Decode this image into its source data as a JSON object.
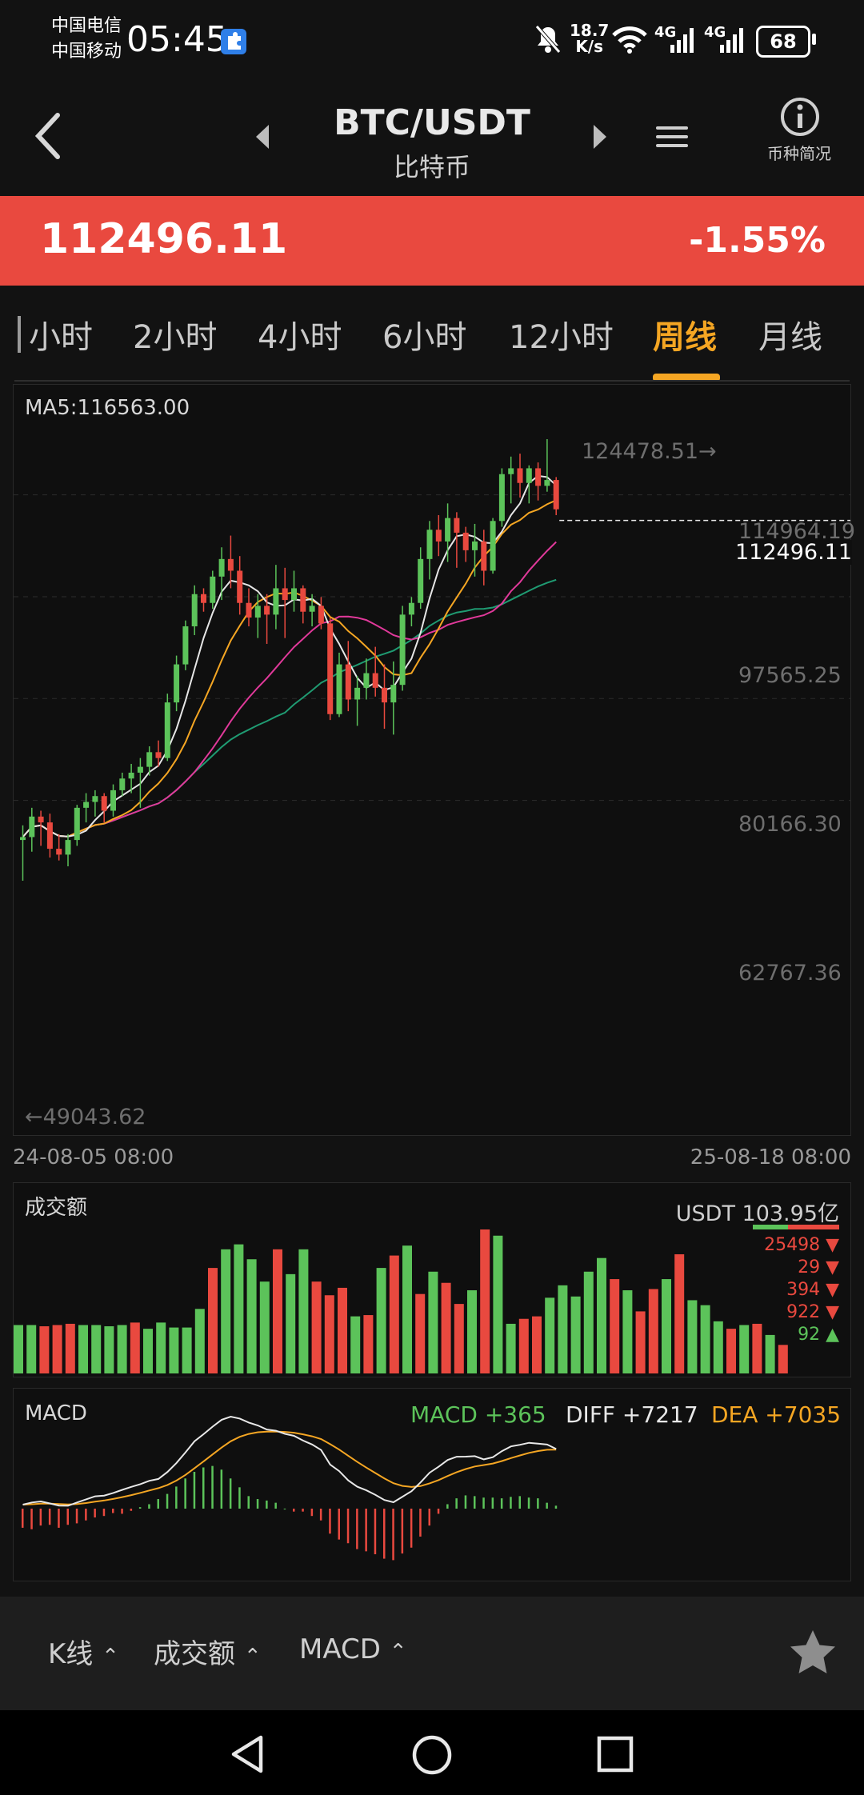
{
  "status": {
    "carrier1": "中国电信",
    "carrier2": "中国移动",
    "time": "05:45",
    "net_speed_value": "18.7",
    "net_speed_unit": "K/s",
    "net1": "4G",
    "net2": "4G",
    "battery": "68"
  },
  "header": {
    "pair": "BTC/USDT",
    "name": "比特币",
    "info_label": "币种简况"
  },
  "ticker": {
    "price": "112496.11",
    "change": "-1.55%"
  },
  "tabs": [
    {
      "label": "小时"
    },
    {
      "label": "2小时"
    },
    {
      "label": "4小时"
    },
    {
      "label": "6小时"
    },
    {
      "label": "12小时"
    },
    {
      "label": "周线",
      "active": true
    },
    {
      "label": "月线"
    }
  ],
  "kline": {
    "ma_label": "MA5:116563.00",
    "high_label": "124478.51→",
    "low_label": "←49043.62",
    "last_label": "112496.11",
    "axis_labels": [
      "114964.19",
      "97565.25",
      "80166.30",
      "62767.36"
    ],
    "date_start": "24-08-05 08:00",
    "date_end": "25-08-18 08:00"
  },
  "volume": {
    "title": "成交额",
    "total": "USDT 103.95亿",
    "stats": [
      {
        "value": "25498",
        "dir": "down"
      },
      {
        "value": "29",
        "dir": "down"
      },
      {
        "value": "394",
        "dir": "down"
      },
      {
        "value": "922",
        "dir": "down"
      },
      {
        "value": "92",
        "dir": "up"
      }
    ]
  },
  "macd": {
    "title": "MACD",
    "macd_label": "MACD +365",
    "diff_label": "DIFF +7217",
    "dea_label": "DEA +7035"
  },
  "toolbar": {
    "kline": "K线",
    "volume": "成交额",
    "macd": "MACD"
  },
  "colors": {
    "up": "#5cc35a",
    "down": "#e9493f",
    "accent": "#f5a623",
    "ma5": "#e6e6e6",
    "ma10": "#f5a623",
    "ma20": "#e0399a",
    "ma30": "#1f9b72"
  },
  "chart_data": {
    "type": "candlestick",
    "candles": [
      [
        56000,
        58500,
        49043.62,
        56500
      ],
      [
        56500,
        61500,
        54000,
        60000
      ],
      [
        60000,
        61000,
        55000,
        59000
      ],
      [
        59000,
        60500,
        53000,
        54500
      ],
      [
        54500,
        57000,
        52500,
        53500
      ],
      [
        53500,
        57000,
        51500,
        56000
      ],
      [
        56000,
        62000,
        55000,
        61500
      ],
      [
        61500,
        64000,
        59000,
        62500
      ],
      [
        62500,
        64500,
        60000,
        63500
      ],
      [
        63500,
        64000,
        59000,
        61000
      ],
      [
        61000,
        65500,
        60000,
        64500
      ],
      [
        64500,
        67500,
        63500,
        66500
      ],
      [
        66500,
        69000,
        64000,
        67500
      ],
      [
        67500,
        70000,
        61500,
        68500
      ],
      [
        68500,
        72000,
        67000,
        71000
      ],
      [
        71000,
        73000,
        68500,
        70000
      ],
      [
        70000,
        81000,
        69500,
        79500
      ],
      [
        79500,
        87500,
        78000,
        86000
      ],
      [
        86000,
        93500,
        85000,
        92500
      ],
      [
        92500,
        99500,
        91000,
        98000
      ],
      [
        98000,
        99000,
        95000,
        96500
      ],
      [
        96500,
        102000,
        95500,
        101000
      ],
      [
        101000,
        106000,
        97000,
        104000
      ],
      [
        104000,
        108000,
        99000,
        102000
      ],
      [
        102000,
        104500,
        94500,
        96500
      ],
      [
        96500,
        99000,
        92500,
        94000
      ],
      [
        94000,
        98000,
        90500,
        96000
      ],
      [
        96000,
        98000,
        89500,
        94500
      ],
      [
        94500,
        103000,
        92000,
        99000
      ],
      [
        99000,
        102500,
        90500,
        97000
      ],
      [
        97000,
        102000,
        95000,
        99000
      ],
      [
        99000,
        99500,
        93000,
        95000
      ],
      [
        95000,
        98000,
        92500,
        96000
      ],
      [
        96000,
        97500,
        92000,
        93000
      ],
      [
        93000,
        94000,
        76500,
        77500
      ],
      [
        77500,
        88000,
        77000,
        86000
      ],
      [
        86000,
        90000,
        78000,
        80000
      ],
      [
        80000,
        84000,
        75500,
        82000
      ],
      [
        82000,
        87000,
        80000,
        84500
      ],
      [
        84500,
        89000,
        80500,
        82000
      ],
      [
        82000,
        86000,
        75000,
        79500
      ],
      [
        79500,
        86500,
        74000,
        82500
      ],
      [
        82500,
        96000,
        81500,
        94500
      ],
      [
        94500,
        97500,
        92500,
        96500
      ],
      [
        96500,
        106000,
        95500,
        104000
      ],
      [
        104000,
        110500,
        100500,
        109000
      ],
      [
        109000,
        111500,
        104500,
        107000
      ],
      [
        107000,
        113500,
        103500,
        111000
      ],
      [
        111000,
        112000,
        102500,
        108500
      ],
      [
        108500,
        109500,
        103500,
        105500
      ],
      [
        105500,
        110000,
        101000,
        107000
      ],
      [
        107000,
        109000,
        99500,
        102000
      ],
      [
        102000,
        111000,
        101500,
        110500
      ],
      [
        110500,
        119500,
        109500,
        118500
      ],
      [
        118500,
        121500,
        113500,
        119500
      ],
      [
        119500,
        122000,
        114500,
        117000
      ],
      [
        117000,
        120000,
        113500,
        119500
      ],
      [
        119500,
        120500,
        114000,
        116500
      ],
      [
        116500,
        124478.51,
        115500,
        117500
      ],
      [
        117500,
        118000,
        111500,
        112496.11
      ]
    ],
    "volume": [
      3.9,
      3.9,
      3.8,
      3.9,
      4.0,
      3.9,
      3.9,
      3.8,
      3.9,
      4.1,
      3.6,
      4.1,
      3.7,
      3.7,
      5.2,
      8.5,
      10.0,
      10.4,
      9.2,
      7.4,
      10.0,
      8.0,
      10.0,
      7.4,
      6.3,
      6.9,
      4.6,
      4.7,
      8.5,
      9.5,
      10.3,
      6.4,
      8.2,
      7.3,
      5.6,
      6.7,
      11.6,
      11.1,
      4.0,
      4.4,
      4.6,
      6.1,
      7.1,
      6.2,
      8.2,
      9.3,
      7.6,
      6.7,
      5.0,
      6.8,
      7.6,
      9.6,
      5.9,
      5.5,
      4.2,
      3.6,
      3.9,
      4.0,
      3.1,
      2.3
    ],
    "macd_hist": [
      -2.6,
      -2.8,
      -2.3,
      -2.2,
      -2.6,
      -2.2,
      -2.0,
      -1.6,
      -1.2,
      -1.0,
      -0.6,
      -0.7,
      -0.3,
      0.2,
      0.6,
      1.3,
      2.0,
      3.0,
      4.1,
      5.0,
      5.6,
      5.8,
      5.3,
      4.1,
      2.9,
      1.7,
      1.3,
      1.1,
      0.8,
      0.0,
      -0.4,
      -0.4,
      -1.0,
      -1.6,
      -3.4,
      -4.2,
      -4.7,
      -5.5,
      -5.8,
      -6.2,
      -6.8,
      -7.0,
      -6.1,
      -5.3,
      -3.8,
      -2.3,
      -0.7,
      0.6,
      1.4,
      1.8,
      1.7,
      1.5,
      1.5,
      1.4,
      1.6,
      1.7,
      1.5,
      1.4,
      0.8,
      0.4
    ],
    "xlim_dates": [
      "24-08-05 08:00",
      "25-08-18 08:00"
    ],
    "ylim": [
      49043.62,
      124478.51
    ]
  }
}
